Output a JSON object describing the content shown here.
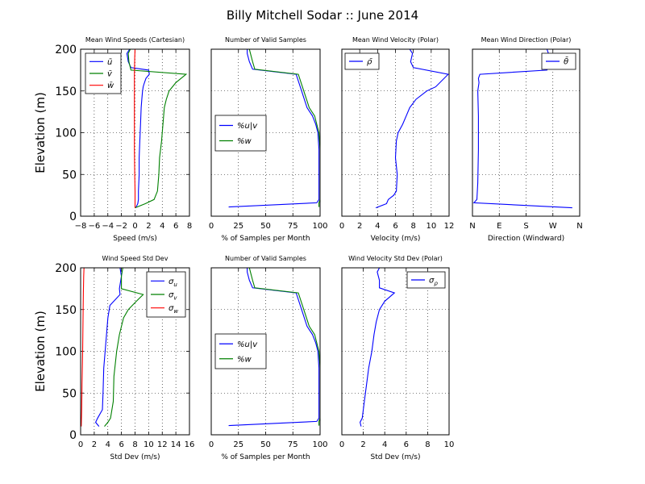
{
  "figure_title": "Billy Mitchell Sodar :: June 2014",
  "chart_data": [
    {
      "id": "p1",
      "type": "line",
      "title": "Mean Wind Speeds (Cartesian)",
      "xlabel": "Speed (m/s)",
      "ylabel": "Elevation (m)",
      "xlim": [
        -8,
        8
      ],
      "ylim": [
        0,
        200
      ],
      "xticks": [
        "−8",
        "−6",
        "−4",
        "−2",
        "0",
        "2",
        "4",
        "6",
        "8"
      ],
      "yticks": [
        "0",
        "50",
        "100",
        "150",
        "200"
      ],
      "grid": true,
      "legend": "top-left",
      "series": [
        {
          "name": "ū",
          "color": "#0000ff",
          "x": [
            0.1,
            0.4,
            0.5,
            0.5,
            0.6,
            0.6,
            0.7,
            0.8,
            0.9,
            1.0,
            1.1,
            1.2,
            1.3,
            1.6,
            2.1,
            2.0,
            -0.6,
            -1.0,
            -1.2,
            -0.8
          ],
          "y": [
            10,
            15,
            20,
            30,
            50,
            70,
            90,
            110,
            130,
            140,
            150,
            155,
            158,
            165,
            170,
            175,
            178,
            185,
            195,
            200
          ]
        },
        {
          "name": "v̄",
          "color": "#008000",
          "x": [
            0.0,
            1.5,
            2.8,
            3.3,
            3.5,
            3.6,
            3.9,
            4.1,
            4.3,
            4.6,
            5.0,
            5.5,
            6.0,
            7.5,
            -0.6,
            -0.9,
            -1.0,
            -0.7
          ],
          "y": [
            10,
            15,
            20,
            30,
            50,
            70,
            90,
            110,
            130,
            140,
            150,
            155,
            160,
            170,
            175,
            185,
            195,
            200
          ]
        },
        {
          "name": "w̄",
          "color": "#ff0000",
          "x": [
            0.0,
            0.0,
            -0.05,
            -0.1,
            -0.1,
            -0.1,
            -0.1,
            -0.05,
            0.0
          ],
          "y": [
            10,
            30,
            50,
            80,
            110,
            140,
            170,
            190,
            200
          ]
        }
      ]
    },
    {
      "id": "p2",
      "type": "line",
      "title": "Number of Valid Samples",
      "xlabel": "% of Samples per Month",
      "xlim": [
        0,
        100
      ],
      "ylim": [
        0,
        200
      ],
      "xticks": [
        "0",
        "25",
        "50",
        "75",
        "100"
      ],
      "grid": true,
      "legend": "center-left",
      "series": [
        {
          "name": "%u|v",
          "color": "#0000ff",
          "x": [
            16,
            97,
            99,
            99,
            99,
            99,
            98,
            96,
            93,
            88,
            83,
            78,
            38,
            35,
            33,
            33
          ],
          "y": [
            11,
            16,
            20,
            40,
            60,
            80,
            100,
            110,
            120,
            130,
            150,
            170,
            176,
            185,
            195,
            200
          ]
        },
        {
          "name": "%w",
          "color": "#008000",
          "x": [
            99,
            99,
            100,
            100,
            100,
            100,
            99,
            97,
            95,
            90,
            85,
            80,
            40,
            38,
            36,
            35
          ],
          "y": [
            11,
            16,
            20,
            40,
            60,
            80,
            100,
            110,
            120,
            130,
            150,
            170,
            176,
            185,
            195,
            200
          ]
        }
      ]
    },
    {
      "id": "p3",
      "type": "line",
      "title": "Mean Wind Velocity (Polar)",
      "xlabel": "Velocity (m/s)",
      "xlim": [
        0,
        12
      ],
      "ylim": [
        0,
        200
      ],
      "xticks": [
        "0",
        "2",
        "4",
        "6",
        "8",
        "10",
        "12"
      ],
      "grid": true,
      "legend": "top-left",
      "series": [
        {
          "name": "ρ̄",
          "color": "#0000ff",
          "x": [
            3.8,
            5.0,
            5.2,
            5.8,
            6.1,
            6.2,
            6.0,
            6.1,
            6.3,
            6.8,
            7.2,
            7.6,
            8.3,
            9.5,
            10.5,
            11.9,
            8.0,
            7.7,
            7.9,
            7.6
          ],
          "y": [
            10,
            15,
            20,
            25,
            30,
            50,
            70,
            90,
            100,
            110,
            120,
            130,
            140,
            150,
            155,
            170,
            178,
            185,
            195,
            200
          ]
        }
      ]
    },
    {
      "id": "p4",
      "type": "line",
      "title": "Mean Wind Direction (Polar)",
      "xlabel": "Direction (Windward)",
      "xlim": [
        0,
        360
      ],
      "ylim": [
        0,
        200
      ],
      "xticks": [
        "N",
        "E",
        "S",
        "W",
        "N"
      ],
      "grid": true,
      "legend": "top-right",
      "series": [
        {
          "name": "θ̄",
          "color": "#0000ff",
          "x": [
            335,
            5,
            15,
            18,
            20,
            20,
            18,
            22,
            20,
            25,
            250,
            260,
            255,
            250
          ],
          "y": [
            10,
            16,
            20,
            40,
            80,
            120,
            150,
            160,
            165,
            170,
            175,
            185,
            195,
            200
          ]
        }
      ]
    },
    {
      "id": "p5",
      "type": "line",
      "title": "Wind Speed Std Dev",
      "xlabel": "Std Dev (m/s)",
      "ylabel": "Elevation (m)",
      "xlim": [
        0,
        16
      ],
      "ylim": [
        0,
        200
      ],
      "xticks": [
        "0",
        "2",
        "4",
        "6",
        "8",
        "10",
        "12",
        "14",
        "16"
      ],
      "yticks": [
        "0",
        "50",
        "100",
        "150",
        "200"
      ],
      "grid": true,
      "legend": "top-right",
      "series": [
        {
          "name": "σ_u",
          "color": "#0000ff",
          "x": [
            2.7,
            2.2,
            2.5,
            3.2,
            3.3,
            3.4,
            3.6,
            3.8,
            4.0,
            4.3,
            5.8,
            5.7,
            6.0,
            5.8
          ],
          "y": [
            10,
            15,
            20,
            30,
            50,
            80,
            100,
            120,
            140,
            155,
            168,
            175,
            190,
            200
          ]
        },
        {
          "name": "σ_v",
          "color": "#008000",
          "x": [
            3.5,
            4.0,
            4.4,
            4.8,
            4.9,
            5.3,
            5.7,
            6.3,
            7.0,
            8.2,
            9.2,
            6.0,
            6.0,
            6.2
          ],
          "y": [
            10,
            15,
            20,
            40,
            70,
            100,
            120,
            140,
            150,
            160,
            168,
            175,
            190,
            200
          ]
        },
        {
          "name": "σ_w",
          "color": "#ff0000",
          "x": [
            0.1,
            0.15,
            0.2,
            0.3,
            0.35,
            0.4,
            0.45,
            0.5
          ],
          "y": [
            10,
            30,
            60,
            100,
            140,
            170,
            190,
            200
          ]
        }
      ]
    },
    {
      "id": "p6",
      "type": "line",
      "title": "Number of Valid Samples",
      "xlabel": "% of Samples per Month",
      "xlim": [
        0,
        100
      ],
      "ylim": [
        0,
        200
      ],
      "xticks": [
        "0",
        "25",
        "50",
        "75",
        "100"
      ],
      "grid": true,
      "legend": "center-left",
      "series": [
        {
          "name": "%u|v",
          "color": "#0000ff",
          "x": [
            16,
            97,
            99,
            99,
            99,
            99,
            98,
            96,
            93,
            88,
            83,
            78,
            38,
            35,
            33,
            33
          ],
          "y": [
            11,
            16,
            20,
            40,
            60,
            80,
            100,
            110,
            120,
            130,
            150,
            170,
            176,
            185,
            195,
            200
          ]
        },
        {
          "name": "%w",
          "color": "#008000",
          "x": [
            99,
            99,
            100,
            100,
            100,
            100,
            99,
            97,
            95,
            90,
            85,
            80,
            40,
            38,
            36,
            35
          ],
          "y": [
            11,
            16,
            20,
            40,
            60,
            80,
            100,
            110,
            120,
            130,
            150,
            170,
            176,
            185,
            195,
            200
          ]
        }
      ]
    },
    {
      "id": "p7",
      "type": "line",
      "title": "Wind Velocity Std Dev (Polar)",
      "xlabel": "Std Dev (m/s)",
      "xlim": [
        0,
        10
      ],
      "ylim": [
        0,
        200
      ],
      "xticks": [
        "0",
        "2",
        "4",
        "6",
        "8",
        "10"
      ],
      "grid": true,
      "legend": "top-right",
      "series": [
        {
          "name": "σ_ρ",
          "color": "#0000ff",
          "x": [
            1.8,
            1.7,
            1.9,
            2.1,
            2.3,
            2.5,
            2.8,
            3.0,
            3.2,
            3.5,
            4.0,
            4.9,
            3.5,
            3.5,
            3.3,
            3.5
          ],
          "y": [
            10,
            15,
            20,
            40,
            60,
            80,
            100,
            120,
            135,
            150,
            160,
            170,
            176,
            185,
            195,
            200
          ]
        }
      ]
    }
  ]
}
